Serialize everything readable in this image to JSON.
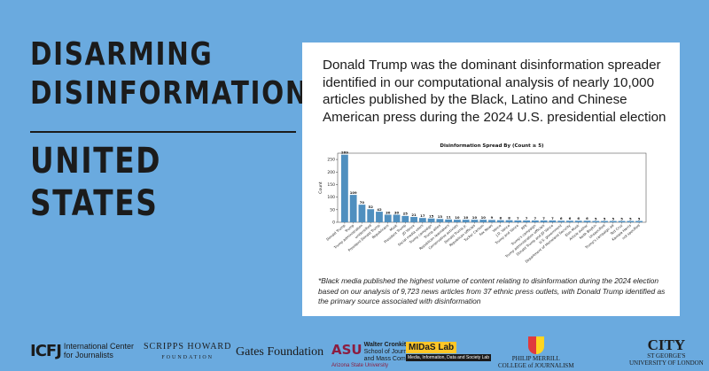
{
  "left_panel": {
    "title_lines": [
      "DISARMING",
      "DISINFORMATION"
    ],
    "country_lines": [
      "UNITED",
      "STATES"
    ]
  },
  "card": {
    "headline": "Donald Trump was the dominant disinformation spreader identified in our computational analysis of nearly 10,000 articles published by the Black, Latino and Chinese American press during the 2024 U.S. presidential election",
    "footnote": "*Black media published the highest volume of content relating to disinformation during the 2024 election based on our analysis of 9,723 news articles from 37 ethnic press outlets, with Donald Trump identified as the primary source associated with  disinformation"
  },
  "chart_data": {
    "type": "bar",
    "title": "Disinformation Spread By (Count ≥ 5)",
    "xlabel": "",
    "ylabel": "Count",
    "ylim": [
      0,
      275
    ],
    "yticks": [
      0,
      50,
      100,
      150,
      200,
      250
    ],
    "bar_color": "#4f8fbf",
    "categories": [
      "Donald Trump",
      "Trump",
      "Trump administration",
      "unidentified",
      "President Donald Trump",
      "Republicans",
      "Musk",
      "President Trump",
      "JD Vance",
      "Social media users",
      "Trump campaign",
      "Trump allies",
      "Republican lawmakers",
      "Conservative activists",
      "Donald Trump Jr.",
      "Republican officials",
      "Tucker Carlson",
      "Fox News",
      "Vance",
      "J.D. Vance",
      "Trump and Vance",
      "RFK",
      "Trump's campaign",
      "Trump administration officials",
      "Donald Trump and JD Vance",
      "U.S. government",
      "Department of Homeland Security",
      "Elon Musk",
      "Article author",
      "Keith Boykin",
      "Unspecified",
      "Trump's campaign ad",
      "Ted Cruz",
      "Kamala Harris",
      "not specified"
    ],
    "values": [
      269,
      109,
      70,
      52,
      42,
      30,
      30,
      25,
      21,
      17,
      15,
      13,
      11,
      10,
      10,
      10,
      10,
      9,
      8,
      8,
      7,
      7,
      7,
      7,
      7,
      6,
      6,
      6,
      6,
      5,
      5,
      5,
      5,
      5,
      5
    ],
    "value_labels": [
      "269",
      "109",
      "70",
      "52",
      "42",
      "30",
      "30",
      "25",
      "21",
      "17",
      "15",
      "13",
      "11",
      "10",
      "10",
      "10",
      "10",
      "9",
      "8",
      "8",
      "7",
      "7",
      "7",
      "7",
      "7",
      "6",
      "6",
      "6",
      "6",
      "5",
      "5",
      "5",
      "5",
      "5",
      "5"
    ]
  },
  "logos": {
    "icfj_mark": "ICFJ",
    "icfj_text": [
      "International Center",
      "for Journalists"
    ],
    "scripps": "SCRIPPS HOWARD",
    "scripps_sub": "FOUNDATION",
    "gates": "Gates Foundation",
    "asu_mark": "ASU",
    "asu_text": [
      "Walter Cronkite",
      "School of Journalism",
      "and Mass Communication"
    ],
    "asu_sub": "Arizona State University",
    "midas": "MIDaS Lab",
    "midas_sub": "Media, Information, Data and Society Lab",
    "merrill": [
      "PHILIP MERRILL",
      "COLLEGE of JOURNALISM"
    ],
    "city": "CITY",
    "city_sub": [
      "ST GEORGE'S",
      "UNIVERSITY OF LONDON"
    ]
  }
}
